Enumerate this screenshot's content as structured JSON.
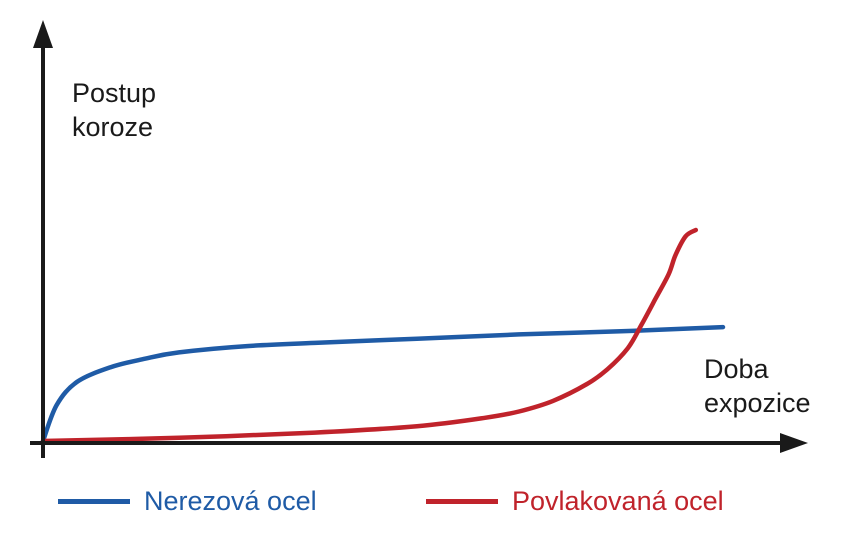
{
  "chart_data": {
    "type": "line",
    "title": "",
    "ylabel": [
      "Postup",
      "koroze"
    ],
    "xlabel": [
      "Doba",
      "expozice"
    ],
    "xlim": [
      0,
      100
    ],
    "ylim": [
      0,
      100
    ],
    "grid": false,
    "legend_position": "bottom",
    "series": [
      {
        "name": "Nerezová ocel",
        "color": "#1f5ba6",
        "x": [
          0,
          2,
          5,
          10,
          15,
          20,
          30,
          40,
          55,
          70,
          85,
          100
        ],
        "y": [
          0,
          17,
          28,
          35,
          39,
          42,
          45,
          46.5,
          48.5,
          50.5,
          52,
          54
        ]
      },
      {
        "name": "Povlakovaná ocel",
        "color": "#c0232b",
        "x": [
          0,
          20,
          40,
          55,
          65,
          70,
          75,
          80,
          83,
          86,
          88,
          90,
          92,
          93,
          94.5,
          96
        ],
        "y": [
          0,
          1.5,
          4,
          7,
          11,
          14,
          19,
          27,
          34,
          44,
          55,
          67,
          79,
          88,
          97,
          100
        ]
      }
    ]
  },
  "colors": {
    "axis": "#1a1a1a",
    "text": "#1a1a1a"
  }
}
